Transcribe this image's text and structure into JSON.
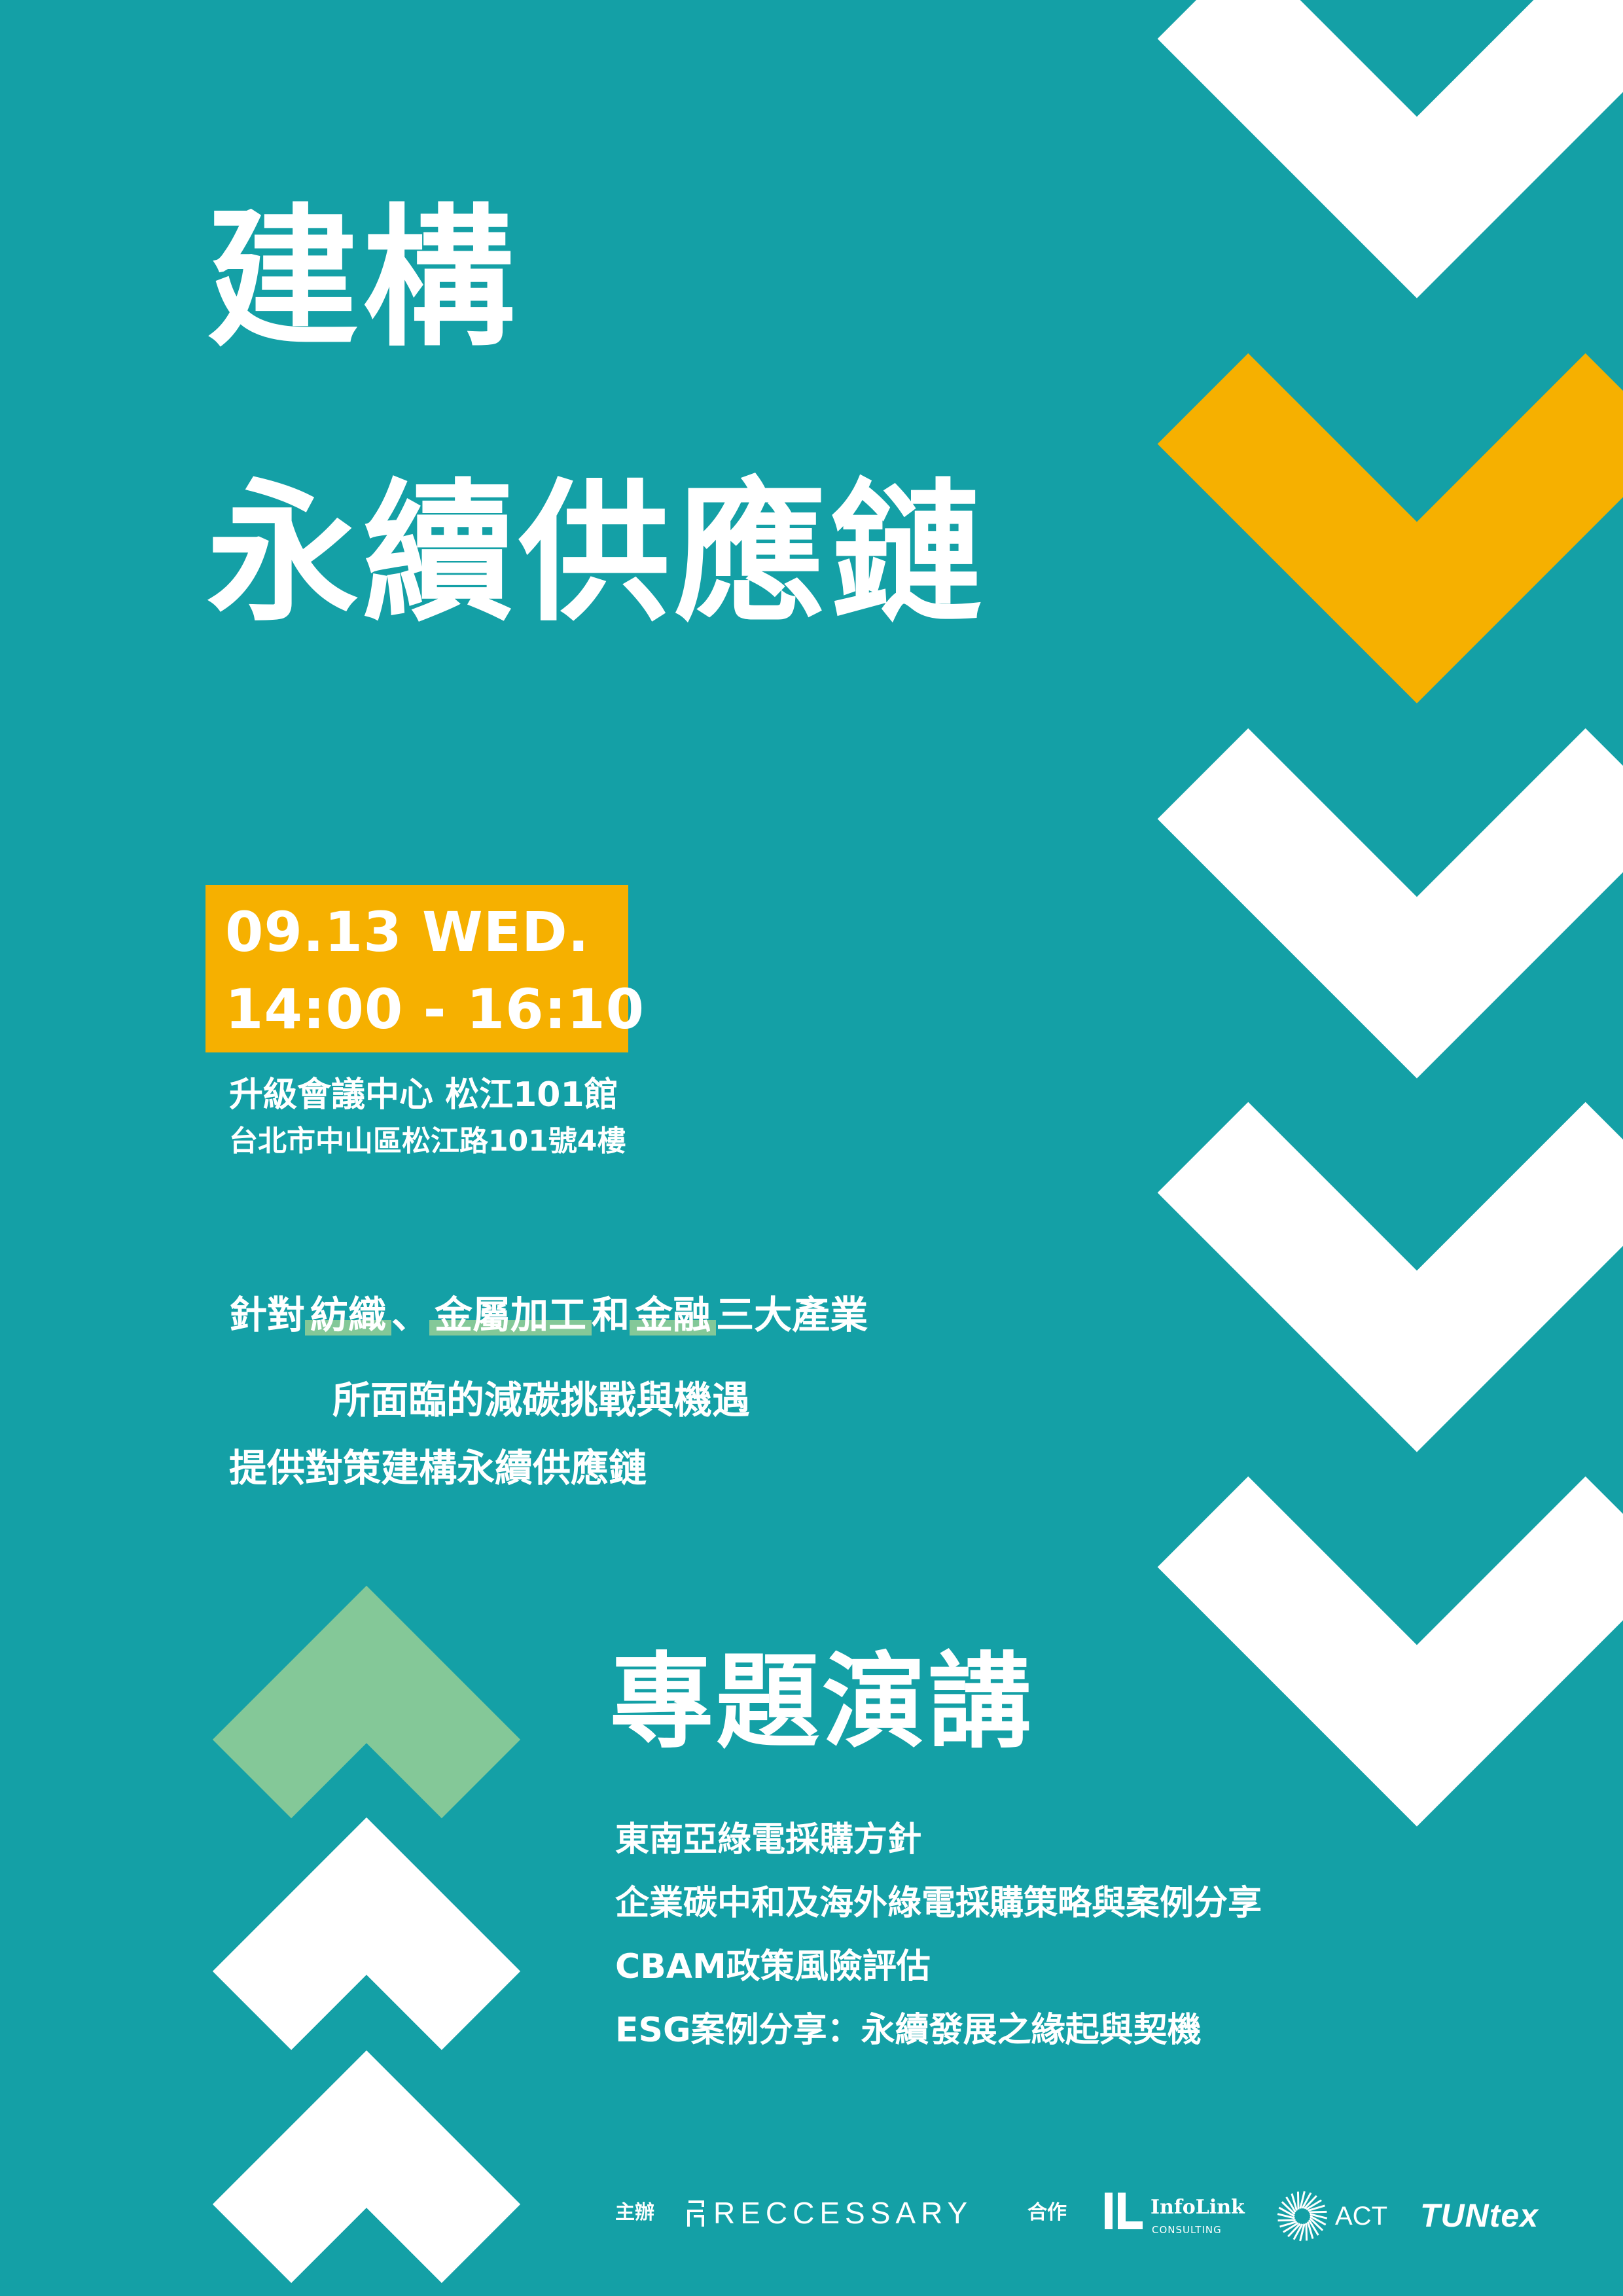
{
  "title": {
    "line1": "建構",
    "line2": "永續供應鏈"
  },
  "event": {
    "date": "09.13 WED.",
    "time": "14:00 - 16:10"
  },
  "venue": {
    "name": "升級會議中心 松江101館",
    "address": "台北市中山區松江路101號4樓"
  },
  "intro": {
    "prefix": "針對",
    "industry1": "紡織",
    "sep1": "、",
    "industry2": "金屬加工",
    "conj": "和",
    "industry3": "金融",
    "suffix": "三大產業",
    "line2": "所面臨的減碳挑戰與機遇",
    "line3": "提供對策建構永續供應鏈"
  },
  "section": {
    "title": "專題演講",
    "topics": [
      "東南亞綠電採購方針",
      "企業碳中和及海外綠電採購策略與案例分享",
      "CBAM政策風險評估",
      "ESG案例分享：永續發展之緣起與契機"
    ]
  },
  "footer": {
    "host_label": "主辦",
    "host_logo": "RECCESSARY",
    "partner_label": "合作",
    "partner1": {
      "name": "InfoLink",
      "sub": "CONSULTING"
    },
    "partner2": "ACT",
    "partner3": "TUNtex"
  },
  "colors": {
    "background": "#14a0a6",
    "accent_yellow": "#f6b000",
    "accent_green": "#84c898",
    "text": "#ffffff"
  }
}
